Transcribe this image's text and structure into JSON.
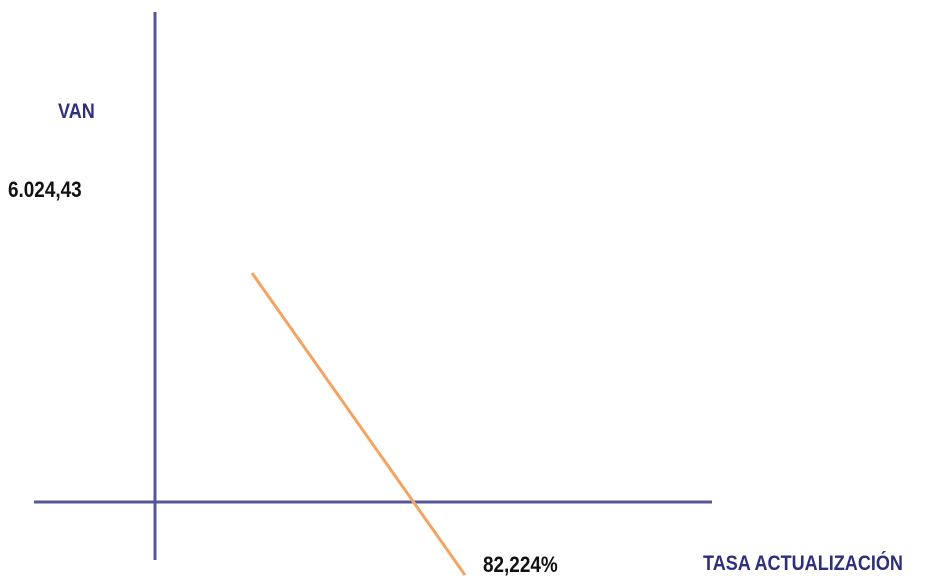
{
  "chart_data": {
    "type": "line",
    "title": "",
    "xlabel": "TASA ACTUALIZACIÓN",
    "ylabel": "VAN",
    "y_tick_label": "6.024,43",
    "x_tick_label": "82,224%",
    "series": [
      {
        "x": [
          0,
          82.224
        ],
        "y": [
          6024.43,
          0
        ]
      }
    ],
    "grid": false,
    "colors": {
      "axis": "#55569a",
      "line": "#f4a460"
    }
  }
}
